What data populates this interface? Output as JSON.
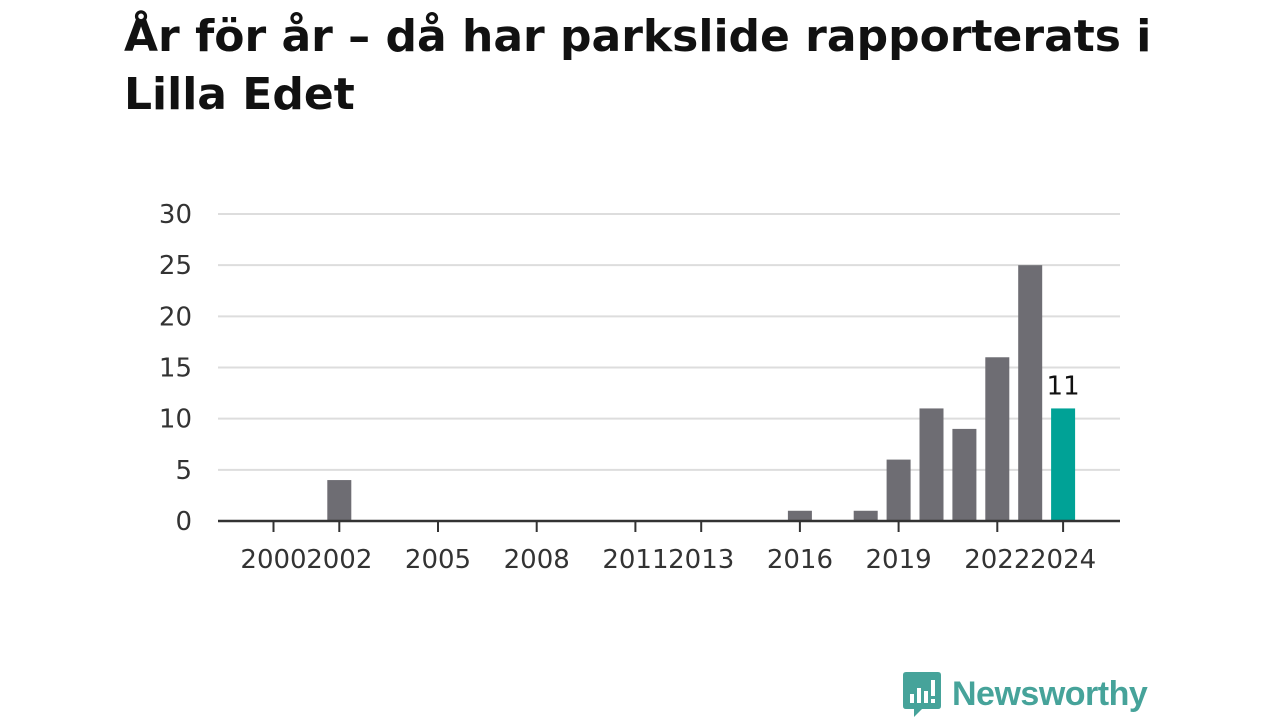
{
  "title": "År för år – då har parkslide rapporterats i Lilla Edet",
  "brand": {
    "name": "Newsworthy",
    "color": "#46a39a",
    "icon": "bar-chart-speech-bubble-icon"
  },
  "colors": {
    "bar": "#6e6d73",
    "highlight": "#00a296",
    "grid": "#dddddd",
    "axis": "#333333"
  },
  "chart_data": {
    "type": "bar",
    "x": [
      2000,
      2001,
      2002,
      2003,
      2004,
      2005,
      2006,
      2007,
      2008,
      2009,
      2010,
      2011,
      2012,
      2013,
      2014,
      2015,
      2016,
      2017,
      2018,
      2019,
      2020,
      2021,
      2022,
      2023,
      2024
    ],
    "values": [
      0,
      0,
      4,
      0,
      0,
      0,
      0,
      0,
      0,
      0,
      0,
      0,
      0,
      0,
      0,
      0,
      1,
      0,
      1,
      6,
      11,
      9,
      16,
      25,
      11
    ],
    "x_tick_labels": [
      "2000",
      "2002",
      "2005",
      "2008",
      "2011",
      "2013",
      "2016",
      "2019",
      "2022",
      "2024"
    ],
    "y_ticks": [
      0,
      5,
      10,
      15,
      20,
      25,
      30
    ],
    "ylim": [
      0,
      30
    ],
    "highlight": {
      "x": 2024,
      "label": "11"
    },
    "grid": true,
    "xlabel": "",
    "ylabel": ""
  }
}
